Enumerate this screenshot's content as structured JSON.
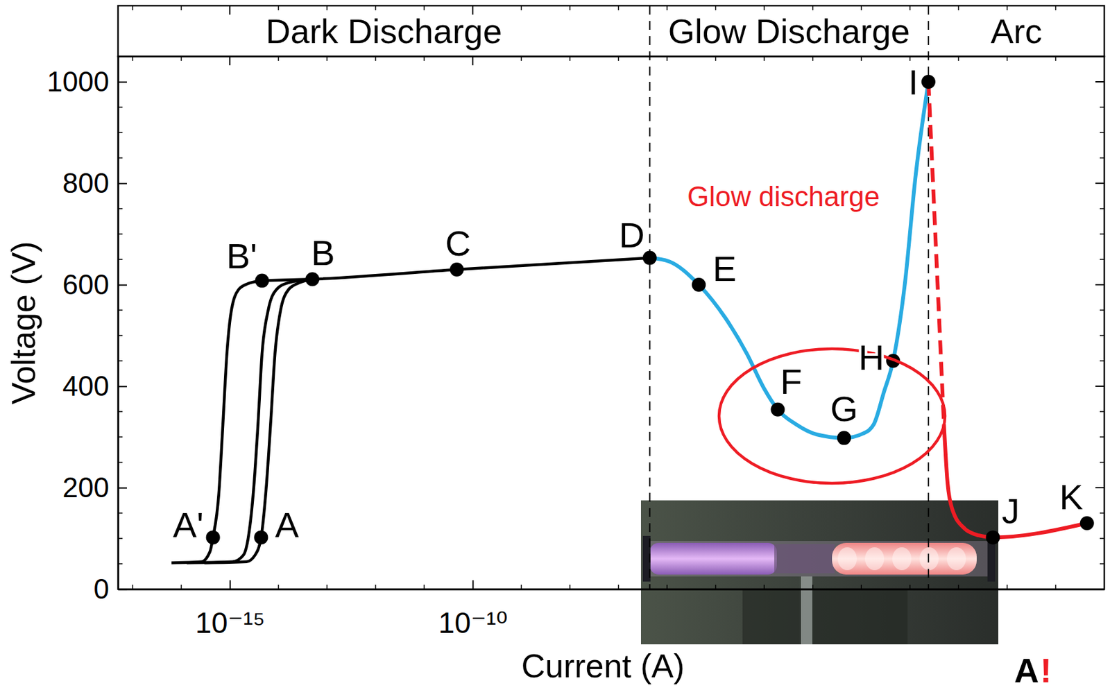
{
  "chart_data": {
    "type": "line",
    "x_label": "Current (A)",
    "y_label": "Voltage (V)",
    "log": "x",
    "grid": false,
    "xlim": [
      5e-18,
      1000
    ],
    "ylim": [
      0,
      1050
    ],
    "xticks": [
      {
        "value": 1e-15,
        "label": "10⁻¹⁵"
      },
      {
        "value": 1e-10,
        "label": "10⁻¹⁰"
      }
    ],
    "yticks": [
      0,
      200,
      400,
      600,
      800,
      1000
    ],
    "regions": {
      "labels": [
        "Dark Discharge",
        "Glow Discharge",
        "Arc"
      ],
      "boundaries": [
        4.4e-07,
        0.24
      ]
    },
    "series": [
      {
        "color": "#000000",
        "line_style": "solid",
        "x": [
          6.3e-17,
          2.6e-16,
          3.9e-16,
          4.5e-16,
          5.9e-16,
          7.2e-16,
          8.7e-16,
          1.07e-15,
          1.5e-15,
          2.2e-15,
          4.6e-15
        ],
        "values": [
          52,
          54,
          74,
          102,
          185,
          325,
          464,
          548,
          590,
          601,
          608
        ]
      },
      {
        "color": "#000000",
        "line_style": "solid",
        "x": [
          1.3e-16,
          1.14e-15,
          1.9e-15,
          2.4e-15,
          3.1e-15,
          3.8e-15,
          4.6e-15,
          6.1e-15,
          9e-15,
          1.6e-14,
          5e-14
        ],
        "values": [
          52,
          54,
          67,
          102,
          199,
          325,
          464,
          548,
          590,
          604,
          611
        ]
      },
      {
        "color": "#000000",
        "line_style": "solid",
        "x": [
          3e-16,
          2.2e-15,
          3.3e-15,
          4.4e-15,
          5.6e-15,
          6.9e-15,
          8.5e-15,
          1.1e-14,
          1.6e-14,
          2.7e-14,
          5e-14
        ],
        "values": [
          52,
          54,
          67,
          102,
          199,
          325,
          464,
          548,
          590,
          604,
          611
        ]
      },
      {
        "color": "#000000",
        "line_style": "solid",
        "x": [
          4.6e-15,
          5e-14,
          4.7e-11,
          4.4e-07
        ],
        "values": [
          608,
          611,
          630,
          653
        ]
      },
      {
        "color": "#29abe2",
        "line_style": "solid",
        "x": [
          4.4e-07,
          1.1e-06,
          4.5e-06,
          1.6e-05,
          4.4e-05,
          0.0001,
          0.00019,
          0.00045,
          0.0012,
          0.0044,
          0.011,
          0.018,
          0.029,
          0.045,
          0.079,
          0.13,
          0.24
        ],
        "values": [
          653,
          646,
          600,
          534,
          464,
          395,
          354,
          325,
          305,
          298,
          307,
          325,
          388,
          450,
          604,
          813,
          1000
        ]
      },
      {
        "color": "#ee1c24",
        "line_style": "dashed",
        "x": [
          0.24,
          0.5
        ],
        "values": [
          1000,
          325
        ]
      },
      {
        "color": "#ee1c24",
        "line_style": "solid",
        "x": [
          0.5,
          0.59,
          0.74,
          1.35,
          2.6,
          5.1,
          440
        ],
        "values": [
          325,
          213,
          158,
          119,
          106,
          102,
          130
        ]
      }
    ],
    "points": {
      "marker": "circle",
      "color": "#000000",
      "labels": [
        "A'",
        "A",
        "B'",
        "B",
        "C",
        "D",
        "E",
        "F",
        "G",
        "H",
        "I",
        "J",
        "K"
      ],
      "x": [
        4.5e-16,
        4.4e-15,
        4.6e-15,
        5e-14,
        4.7e-11,
        4.4e-07,
        4.5e-06,
        0.00019,
        0.0044,
        0.045,
        0.24,
        5.1,
        440
      ],
      "y": [
        102,
        102,
        608,
        611,
        630,
        653,
        600,
        354,
        298,
        450,
        1000,
        102,
        130
      ]
    },
    "annotations": [
      {
        "text": "Glow discharge",
        "x": 0.00025,
        "y": 775,
        "color": "#ee1c24"
      }
    ],
    "logo": {
      "texts": [
        "A",
        "!"
      ],
      "colors": [
        "#000000",
        "#ee1c24"
      ]
    }
  }
}
